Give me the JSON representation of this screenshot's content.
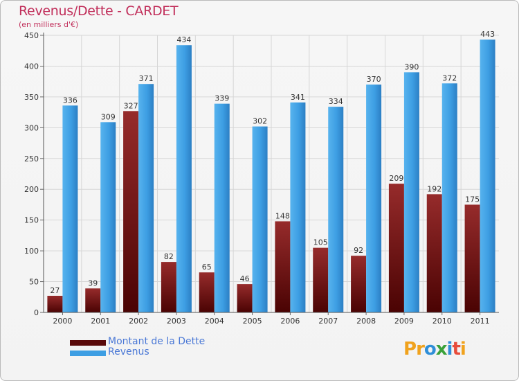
{
  "title": "Revenus/Dette - CARDET",
  "subtitle": "(en milliers d'€)",
  "chart_data": {
    "type": "bar",
    "categories": [
      "2000",
      "2001",
      "2002",
      "2003",
      "2004",
      "2005",
      "2006",
      "2007",
      "2008",
      "2009",
      "2010",
      "2011"
    ],
    "series": [
      {
        "name": "Montant de la Dette",
        "values": [
          27,
          39,
          327,
          82,
          65,
          46,
          148,
          105,
          92,
          209,
          192,
          175
        ],
        "color": "#7a1515"
      },
      {
        "name": "Revenus",
        "values": [
          336,
          309,
          371,
          434,
          339,
          302,
          341,
          334,
          370,
          390,
          372,
          443
        ],
        "color": "#3d9ee3"
      }
    ],
    "ylim": [
      0,
      450
    ],
    "yticks": [
      0,
      50,
      100,
      150,
      200,
      250,
      300,
      350,
      400,
      450
    ],
    "grid": true,
    "legend_position": "bottom-left"
  },
  "logo": {
    "letters": [
      "P",
      "r",
      "o",
      "x",
      "i",
      "t",
      "i"
    ],
    "colors": [
      "#f0a21d",
      "#f0a21d",
      "#2f8fd8",
      "#3aa13a",
      "#2f8fd8",
      "#e74c3c",
      "#f0a21d"
    ]
  }
}
